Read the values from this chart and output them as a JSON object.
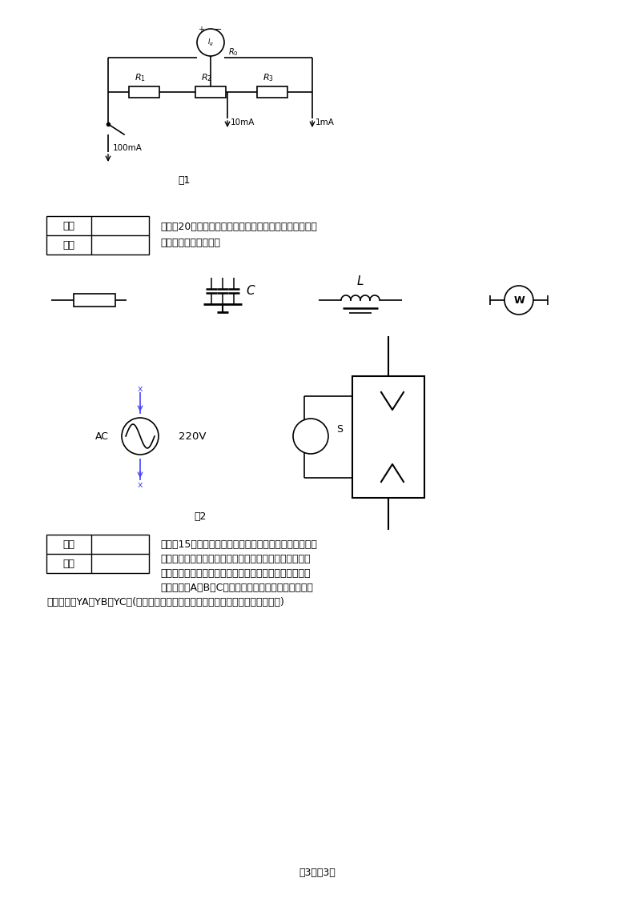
{
  "page_width": 7.93,
  "page_height": 11.22,
  "bg_color": "#ffffff",
  "text_color": "#000000",
  "blue_color": "#4444ff",
  "page_footer": "第3页共3页",
  "section4_title_line1": "四、（20分）构成日光灯电路的元件如图所示，请进行正",
  "section4_title_line2": "确连接使之正常工作。",
  "section5_text1": "五、（15分）旅客列车分特快、直快、和普快，并依此为",
  "section5_text2": "优先通行次序。某站在同一时间只能有一趟列车从车站出",
  "section5_text3": "发，即只能给出一个开车信号，试画出满足上述要求的逻",
  "section5_text4": "辑电路。设A、B、C分别代表特快、直快、普快，开车",
  "section5_text5": "信号分别为YA、YB、YC。(要求列写真值表、写出最简逻辑表达式、并画出逻辑图)",
  "section5_text6": "图)",
  "fig1_label": "图1",
  "fig2_label": "图2",
  "score_label": "得分",
  "review_label": "阅卷"
}
